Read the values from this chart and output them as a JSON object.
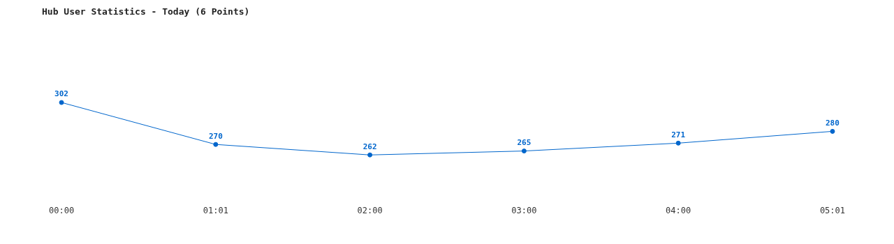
{
  "chart_data": {
    "type": "line",
    "title": "Hub User Statistics - Today (6 Points)",
    "categories": [
      "00:00",
      "01:01",
      "02:00",
      "03:00",
      "04:00",
      "05:01"
    ],
    "series": [
      {
        "color": "#0066cc",
        "values": [
          302,
          270,
          262,
          265,
          271,
          280
        ]
      }
    ],
    "data_labels": true,
    "marker": "circle"
  }
}
